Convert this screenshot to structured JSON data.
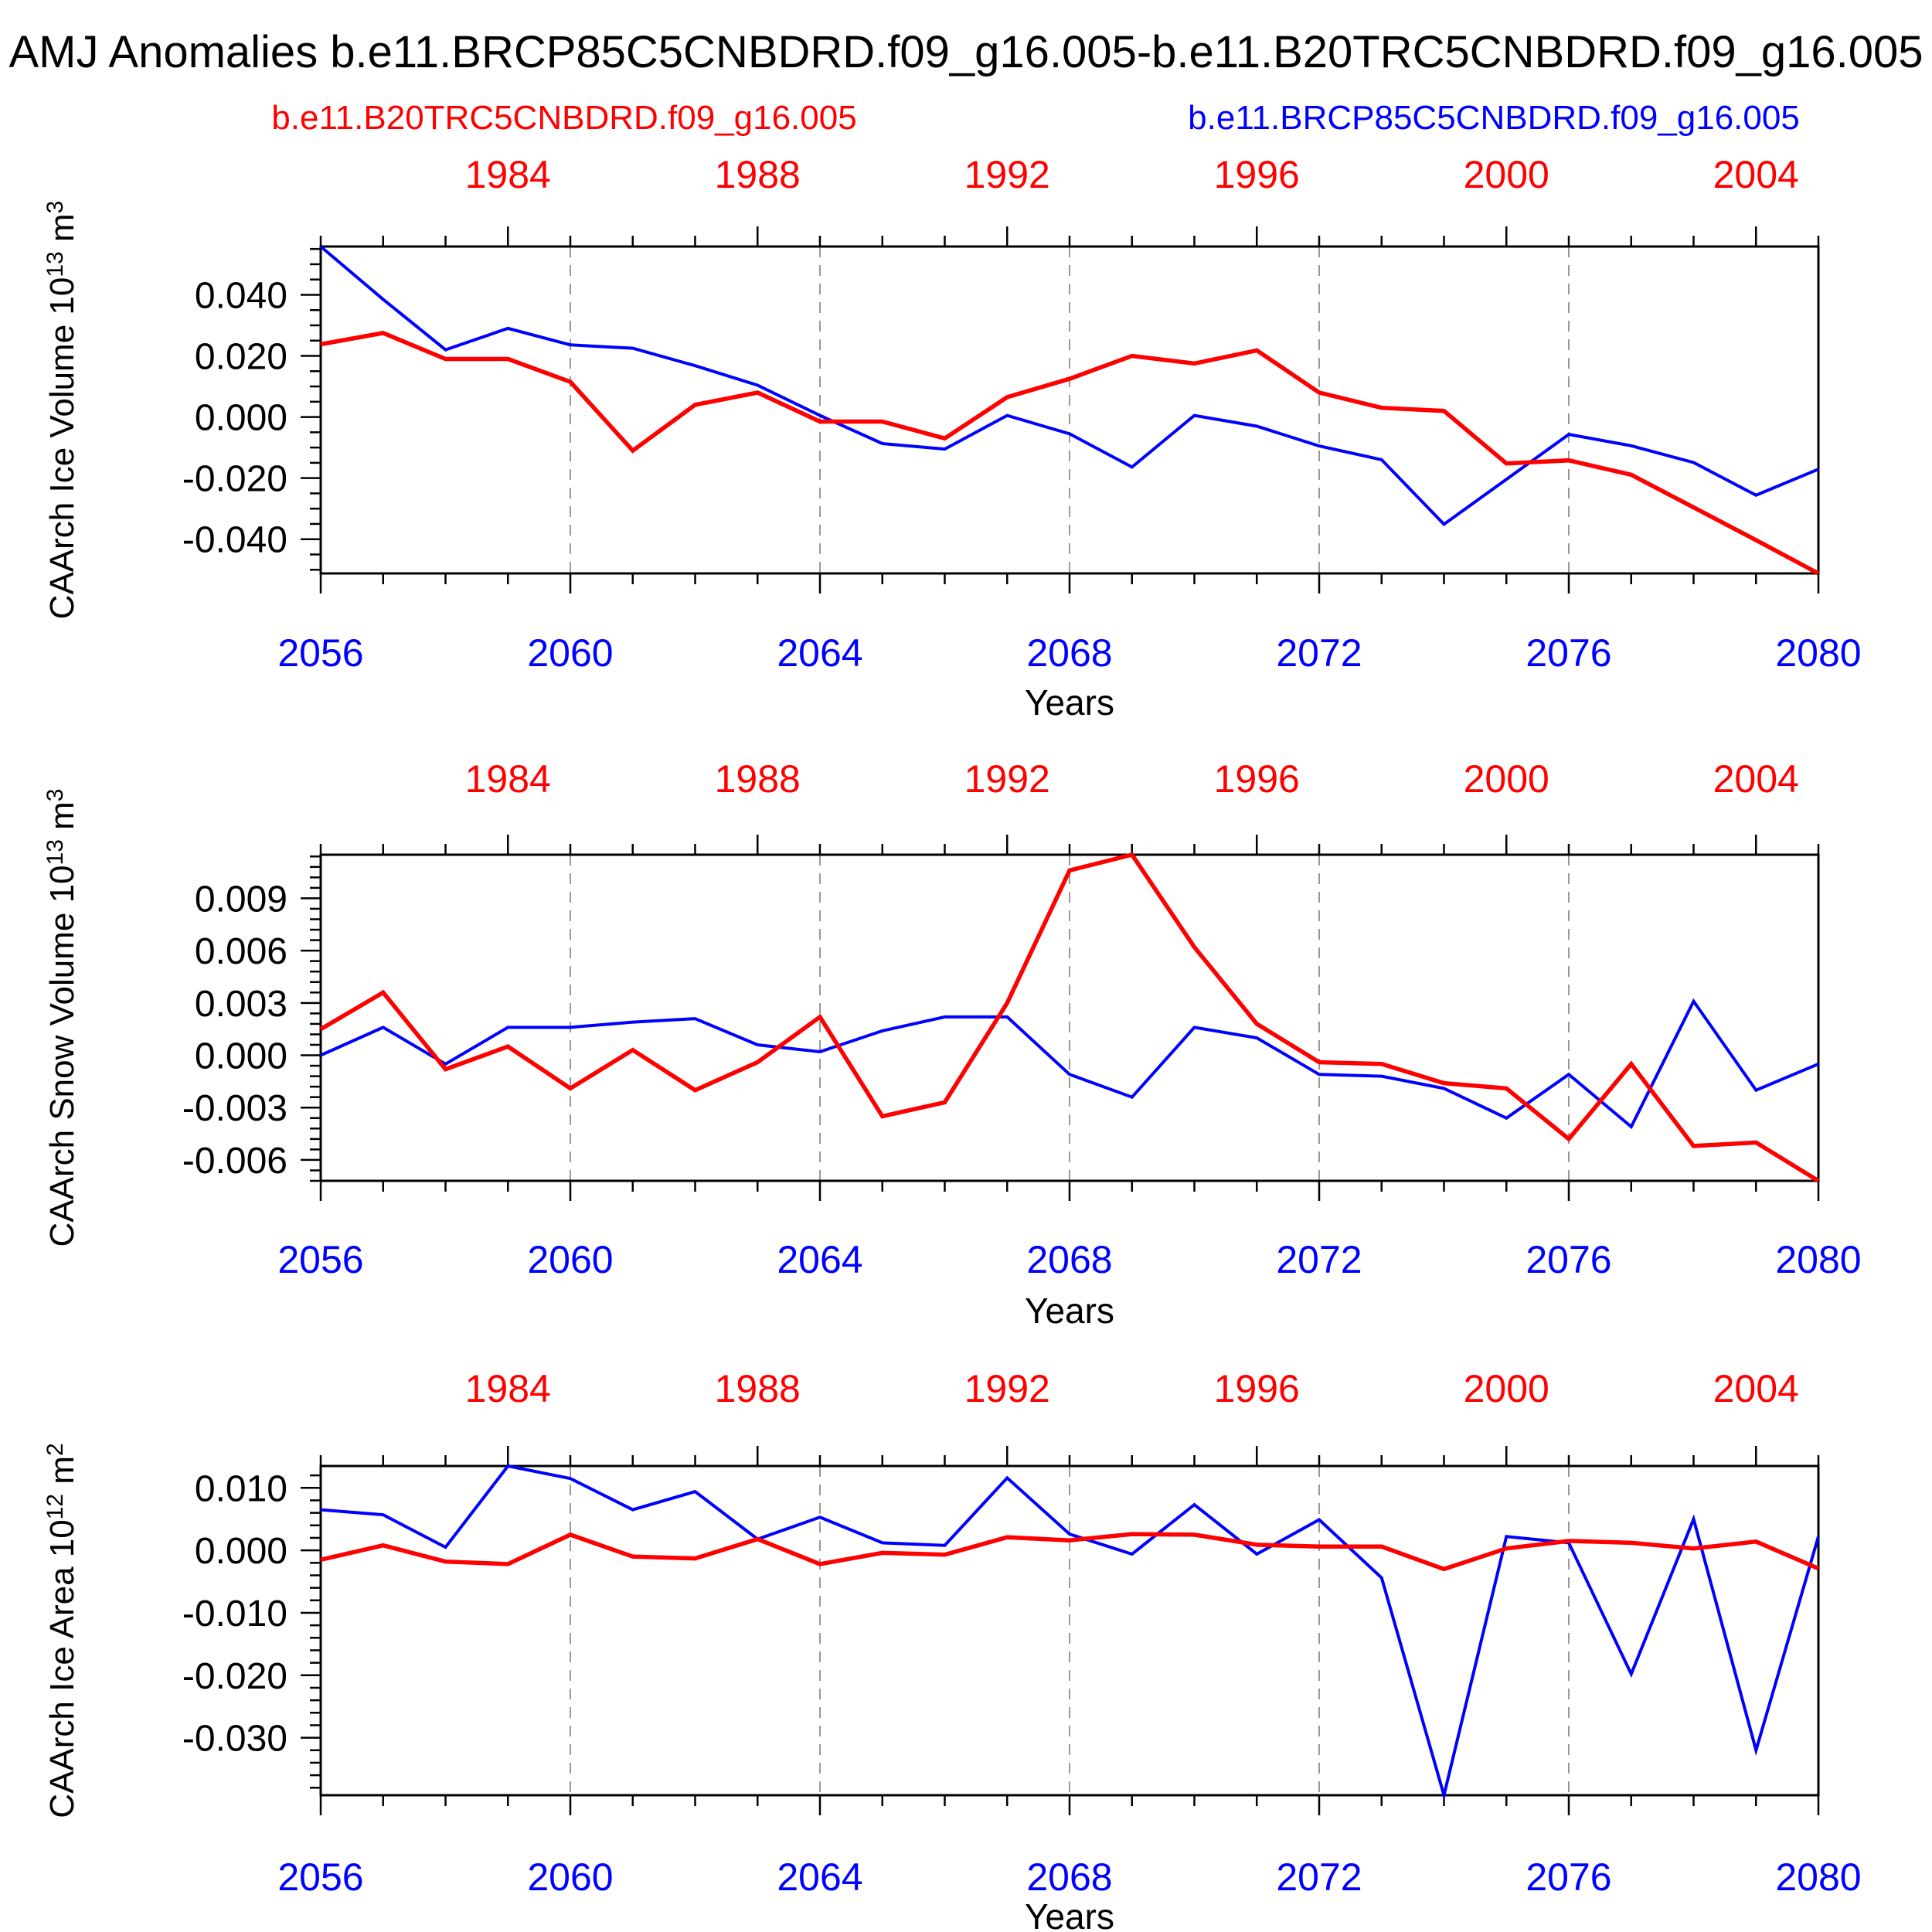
{
  "page": {
    "title": "AMJ Anomalies b.e11.BRCP85C5CNBDRD.f09_g16.005-b.e11.B20TRC5CNBDRD.f09_g16.005",
    "background": "#ffffff"
  },
  "legend": {
    "red_label": "b.e11.B20TRC5CNBDRD.f09_g16.005",
    "blue_label": "b.e11.BRCP85C5CNBDRD.f09_g16.005",
    "red_color": "#ff0000",
    "blue_color": "#0000ff"
  },
  "axes": {
    "x_label": "Years",
    "blue_x_range": [
      2056,
      2080
    ],
    "red_x_range": [
      1981,
      2005
    ],
    "bottom_tick_years": [
      2056,
      2060,
      2064,
      2068,
      2072,
      2076,
      2080
    ],
    "top_tick_years": [
      1984,
      1988,
      1992,
      1996,
      2000,
      2004
    ],
    "grid_years": [
      2060,
      2064,
      2068,
      2072,
      2076
    ],
    "axis_color": "#000000",
    "grid_color": "#999999"
  },
  "chart_data": [
    {
      "id": "ice-volume",
      "type": "line",
      "ylabel_text": "CAArch Ice Volume 10^13 m^3",
      "ylabel_parts": [
        {
          "text": "CAArch Ice Volume 10"
        },
        {
          "text": "13",
          "sup": true
        },
        {
          "text": " m"
        },
        {
          "text": "3",
          "sup": true
        }
      ],
      "xlabel": "Years",
      "x_start": 2056,
      "ylim": [
        -0.0512,
        0.0558
      ],
      "yticks": [
        0.04,
        0.02,
        0.0,
        -0.02,
        -0.04
      ],
      "ytick_labels": [
        "0.040",
        "0.020",
        "0.000",
        "-0.020",
        "-0.040"
      ],
      "y_minor_step": 0.005,
      "series": [
        {
          "name": "b.e11.B20TRC5CNBDRD.f09_g16.005",
          "color": "#ff0000",
          "values": [
            0.0238,
            0.0275,
            0.019,
            0.019,
            0.0115,
            -0.011,
            0.004,
            0.008,
            -0.0015,
            -0.0015,
            -0.007,
            0.0065,
            0.0125,
            0.02,
            0.0175,
            0.0218,
            0.008,
            0.003,
            0.002,
            -0.0152,
            -0.0142,
            -0.0189,
            -0.0296,
            -0.0403,
            -0.0512
          ]
        },
        {
          "name": "b.e11.BRCP85C5CNBDRD.f09_g16.005",
          "color": "#0000ff",
          "values": [
            0.0558,
            0.0385,
            0.022,
            0.029,
            0.0236,
            0.0225,
            0.0168,
            0.0104,
            0.0005,
            -0.0087,
            -0.0105,
            0.0005,
            -0.0055,
            -0.0164,
            0.0005,
            -0.003,
            -0.0095,
            -0.014,
            -0.0351,
            -0.0204,
            -0.0057,
            -0.0094,
            -0.0149,
            -0.0256,
            -0.0171
          ]
        }
      ]
    },
    {
      "id": "snow-volume",
      "type": "line",
      "ylabel_text": "CAArch Snow Volume 10^13 m^3",
      "ylabel_parts": [
        {
          "text": "CAArch Snow Volume 10"
        },
        {
          "text": "13",
          "sup": true
        },
        {
          "text": " m"
        },
        {
          "text": "3",
          "sup": true
        }
      ],
      "xlabel": "Years",
      "x_start": 2056,
      "ylim": [
        -0.0072,
        0.0115
      ],
      "yticks": [
        0.009,
        0.006,
        0.003,
        0.0,
        -0.003,
        -0.006
      ],
      "ytick_labels": [
        "0.009",
        "0.006",
        "0.003",
        "0.000",
        "-0.003",
        "-0.006"
      ],
      "y_minor_step": 0.0006,
      "series": [
        {
          "name": "b.e11.B20TRC5CNBDRD.f09_g16.005",
          "color": "#ff0000",
          "values": [
            0.0015,
            0.0036,
            -0.0008,
            0.0005,
            -0.0019,
            0.0003,
            -0.002,
            -0.0004,
            0.0022,
            -0.0035,
            -0.0027,
            0.003,
            0.0106,
            0.0115,
            0.0062,
            0.0018,
            -0.0004,
            -0.0005,
            -0.0016,
            -0.0019,
            -0.0048,
            -0.0005,
            -0.0052,
            -0.005,
            -0.0072
          ]
        },
        {
          "name": "b.e11.BRCP85C5CNBDRD.f09_g16.005",
          "color": "#0000ff",
          "values": [
            0.0,
            0.0016,
            -0.0005,
            0.0016,
            0.0016,
            0.0019,
            0.0021,
            0.0006,
            0.0002,
            0.0014,
            0.0022,
            0.0022,
            -0.0011,
            -0.0024,
            0.0016,
            0.001,
            -0.0011,
            -0.0012,
            -0.0019,
            -0.0036,
            -0.0011,
            -0.0041,
            0.0031,
            -0.002,
            -0.0005
          ]
        }
      ]
    },
    {
      "id": "ice-area",
      "type": "line",
      "ylabel_text": "CAArch Ice Area 10^12 m^2",
      "ylabel_parts": [
        {
          "text": "CAArch Ice Area 10"
        },
        {
          "text": "12",
          "sup": true
        },
        {
          "text": " m"
        },
        {
          "text": "2",
          "sup": true
        }
      ],
      "xlabel": "Years",
      "x_start": 2056,
      "ylim": [
        -0.0392,
        0.0135
      ],
      "yticks": [
        0.01,
        0.0,
        -0.01,
        -0.02,
        -0.03
      ],
      "ytick_labels": [
        "0.010",
        "0.000",
        "-0.010",
        "-0.020",
        "-0.030"
      ],
      "y_minor_step": 0.002,
      "series": [
        {
          "name": "b.e11.B20TRC5CNBDRD.f09_g16.005",
          "color": "#ff0000",
          "values": [
            -0.0015,
            0.0008,
            -0.0018,
            -0.0022,
            0.0025,
            -0.001,
            -0.0013,
            0.0018,
            -0.0022,
            -0.0004,
            -0.0007,
            0.0021,
            0.0016,
            0.0026,
            0.0025,
            0.0009,
            0.0006,
            0.0006,
            -0.003,
            0.0003,
            0.0015,
            0.0012,
            0.0003,
            0.0014,
            -0.0029
          ]
        },
        {
          "name": "b.e11.BRCP85C5CNBDRD.f09_g16.005",
          "color": "#0000ff",
          "values": [
            0.0065,
            0.0057,
            0.0005,
            0.0135,
            0.0115,
            0.0065,
            0.0094,
            0.0018,
            0.0053,
            0.0012,
            0.0008,
            0.0116,
            0.0026,
            -0.0006,
            0.0073,
            -0.0006,
            0.0049,
            -0.0044,
            -0.0392,
            0.0022,
            0.0012,
            -0.0198,
            0.005,
            -0.032,
            0.0022
          ]
        }
      ]
    }
  ]
}
